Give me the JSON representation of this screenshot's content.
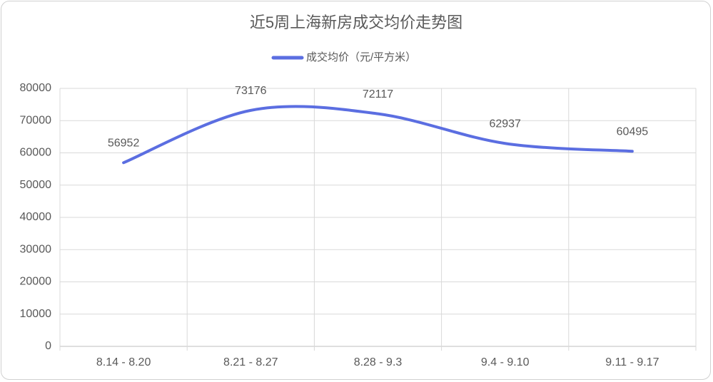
{
  "chart_data": {
    "type": "line",
    "title": "近5周上海新房成交均价走势图",
    "categories": [
      "8.14 - 8.20",
      "8.21 - 8.27",
      "8.28 - 9.3",
      "9.4 - 9.10",
      "9.11 - 9.17"
    ],
    "series": [
      {
        "name": "成交均价（元/平方米）",
        "color": "#5b6ee1",
        "values": [
          56952,
          73176,
          72117,
          62937,
          60495
        ]
      }
    ],
    "ylim": [
      0,
      80000
    ],
    "yticks": [
      0,
      10000,
      20000,
      30000,
      40000,
      50000,
      60000,
      70000,
      80000
    ],
    "grid": true,
    "smooth": true,
    "legend": "top"
  }
}
